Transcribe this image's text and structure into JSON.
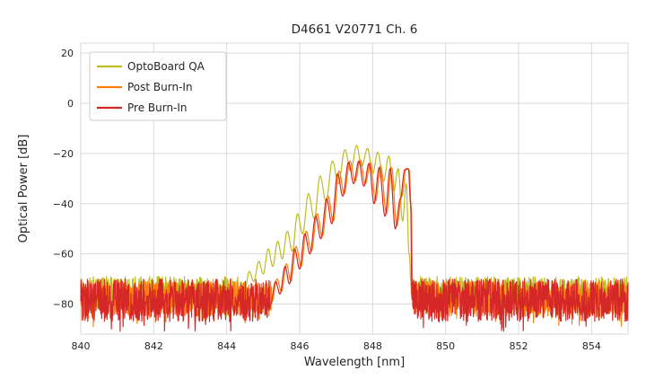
{
  "chart_data": {
    "type": "line",
    "title": "D4661 V20771 Ch. 6",
    "xlabel": "Wavelength [nm]",
    "ylabel": "Optical Power [dB]",
    "xlim": [
      840,
      855
    ],
    "ylim": [
      -92,
      24
    ],
    "x_ticks": [
      840,
      842,
      844,
      846,
      848,
      850,
      852,
      854
    ],
    "y_ticks": [
      20,
      0,
      -20,
      -40,
      -60,
      -80
    ],
    "grid": true,
    "grid_color": "#dadada",
    "background_color": "#ffffff",
    "legend_position": "upper-left",
    "series": [
      {
        "id": "optoboard-qa",
        "name": "OptoBoard QA",
        "color": "#bcbd22",
        "seed": 11,
        "noise_top": -69,
        "noise_spread": 13,
        "peak_dB": -16.8,
        "peak_nm": 847.56,
        "envelope": [
          [
            844.5,
            -74
          ],
          [
            844.62,
            -67
          ],
          [
            844.74,
            -71
          ],
          [
            844.88,
            -63
          ],
          [
            845.0,
            -68
          ],
          [
            845.14,
            -58
          ],
          [
            845.26,
            -65
          ],
          [
            845.4,
            -55
          ],
          [
            845.52,
            -62
          ],
          [
            845.66,
            -51
          ],
          [
            845.8,
            -59
          ],
          [
            845.94,
            -44
          ],
          [
            846.08,
            -52
          ],
          [
            846.24,
            -36
          ],
          [
            846.4,
            -46
          ],
          [
            846.56,
            -29
          ],
          [
            846.72,
            -39
          ],
          [
            846.9,
            -23
          ],
          [
            847.06,
            -32
          ],
          [
            847.24,
            -18.5
          ],
          [
            847.4,
            -27
          ],
          [
            847.56,
            -16.8
          ],
          [
            847.7,
            -25
          ],
          [
            847.86,
            -18
          ],
          [
            848.0,
            -28
          ],
          [
            848.14,
            -19.5
          ],
          [
            848.3,
            -31
          ],
          [
            848.44,
            -21
          ],
          [
            848.58,
            -35
          ],
          [
            848.7,
            -26
          ],
          [
            848.82,
            -47
          ],
          [
            848.92,
            -32
          ],
          [
            849.0,
            -60
          ],
          [
            849.06,
            -74
          ]
        ]
      },
      {
        "id": "post-burn-in",
        "name": "Post Burn-In",
        "color": "#ff7f0e",
        "seed": 23,
        "noise_top": -71,
        "noise_spread": 14,
        "peak_dB": -22.5,
        "peak_nm": 847.66,
        "envelope": [
          [
            845.24,
            -79
          ],
          [
            845.38,
            -70
          ],
          [
            845.5,
            -75
          ],
          [
            845.64,
            -64
          ],
          [
            845.76,
            -71
          ],
          [
            845.9,
            -57
          ],
          [
            846.04,
            -65
          ],
          [
            846.18,
            -51
          ],
          [
            846.32,
            -59
          ],
          [
            846.48,
            -44
          ],
          [
            846.62,
            -53
          ],
          [
            846.78,
            -37
          ],
          [
            846.92,
            -47
          ],
          [
            847.08,
            -27
          ],
          [
            847.22,
            -36
          ],
          [
            847.38,
            -23
          ],
          [
            847.52,
            -31
          ],
          [
            847.66,
            -22.5
          ],
          [
            847.8,
            -32
          ],
          [
            847.94,
            -23.5
          ],
          [
            848.08,
            -39
          ],
          [
            848.22,
            -25
          ],
          [
            848.38,
            -44
          ],
          [
            848.52,
            -25.5
          ],
          [
            848.66,
            -49
          ],
          [
            848.8,
            -37
          ],
          [
            848.92,
            -26
          ],
          [
            849.0,
            -26.5
          ],
          [
            849.06,
            -42
          ],
          [
            849.1,
            -79
          ]
        ]
      },
      {
        "id": "pre-burn-in",
        "name": "Pre Burn-In",
        "color": "#d62728",
        "seed": 37,
        "noise_top": -70,
        "noise_spread": 17,
        "peak_dB": -23,
        "peak_nm": 847.62,
        "envelope": [
          [
            845.2,
            -80
          ],
          [
            845.34,
            -71
          ],
          [
            845.46,
            -76
          ],
          [
            845.6,
            -65
          ],
          [
            845.72,
            -72
          ],
          [
            845.86,
            -58
          ],
          [
            846.0,
            -66
          ],
          [
            846.14,
            -52
          ],
          [
            846.28,
            -60
          ],
          [
            846.44,
            -45
          ],
          [
            846.58,
            -54
          ],
          [
            846.74,
            -38
          ],
          [
            846.88,
            -48
          ],
          [
            847.04,
            -28
          ],
          [
            847.18,
            -37
          ],
          [
            847.34,
            -23.5
          ],
          [
            847.48,
            -32
          ],
          [
            847.62,
            -23
          ],
          [
            847.76,
            -33
          ],
          [
            847.9,
            -24
          ],
          [
            848.04,
            -40
          ],
          [
            848.18,
            -25.5
          ],
          [
            848.34,
            -45
          ],
          [
            848.48,
            -26
          ],
          [
            848.62,
            -50
          ],
          [
            848.76,
            -38
          ],
          [
            848.88,
            -26.5
          ],
          [
            848.98,
            -26
          ],
          [
            849.04,
            -40
          ],
          [
            849.08,
            -80
          ]
        ]
      }
    ]
  }
}
